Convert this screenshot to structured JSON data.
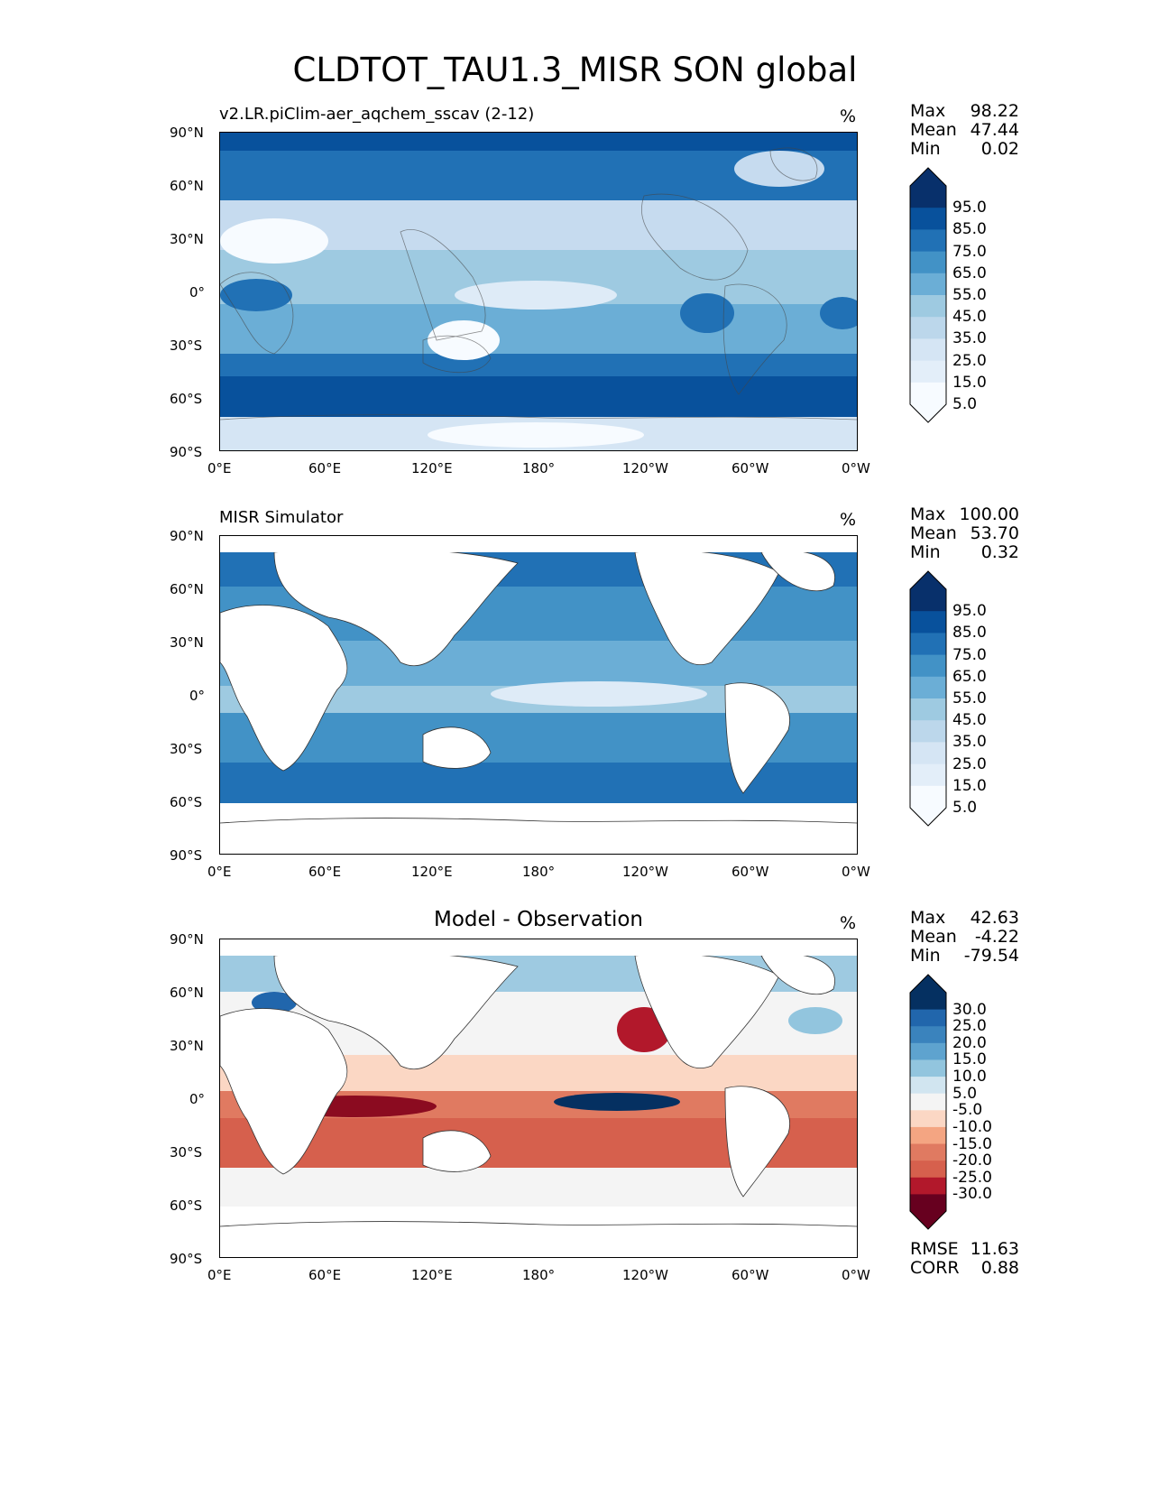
{
  "title": "CLDTOT_TAU1.3_MISR SON global",
  "lat_ticks": [
    "90°N",
    "60°N",
    "30°N",
    "0°",
    "30°S",
    "60°S",
    "90°S"
  ],
  "lon_ticks": [
    "0°E",
    "60°E",
    "120°E",
    "180°",
    "120°W",
    "60°W",
    "0°W"
  ],
  "panels": [
    {
      "subtitle": "v2.LR.piClim-aer_aqchem_sscav (2-12)",
      "units": "%",
      "stats": {
        "max_label": "Max",
        "max": "98.22",
        "mean_label": "Mean",
        "mean": "47.44",
        "min_label": "Min",
        "min": "0.02"
      },
      "colorbar": {
        "labels": [
          "95.0",
          "85.0",
          "75.0",
          "65.0",
          "55.0",
          "45.0",
          "35.0",
          "25.0",
          "15.0",
          "5.0"
        ],
        "colors": [
          "#08306b",
          "#08519c",
          "#2171b5",
          "#4292c6",
          "#6baed6",
          "#9ecae1",
          "#bcd7eb",
          "#d5e5f4",
          "#e3eef9",
          "#f7fbff"
        ]
      }
    },
    {
      "subtitle": "MISR Simulator",
      "units": "%",
      "stats": {
        "max_label": "Max",
        "max": "100.00",
        "mean_label": "Mean",
        "mean": "53.70",
        "min_label": "Min",
        "min": "0.32"
      },
      "colorbar": {
        "labels": [
          "95.0",
          "85.0",
          "75.0",
          "65.0",
          "55.0",
          "45.0",
          "35.0",
          "25.0",
          "15.0",
          "5.0"
        ],
        "colors": [
          "#08306b",
          "#08519c",
          "#2171b5",
          "#4292c6",
          "#6baed6",
          "#9ecae1",
          "#bcd7eb",
          "#d5e5f4",
          "#e3eef9",
          "#f7fbff"
        ]
      }
    },
    {
      "subtitle": "Model - Observation",
      "units": "%",
      "stats": {
        "max_label": "Max",
        "max": "42.63",
        "mean_label": "Mean",
        "mean": "-4.22",
        "min_label": "Min",
        "min": "-79.54"
      },
      "colorbar": {
        "labels": [
          "30.0",
          "25.0",
          "20.0",
          "15.0",
          "10.0",
          "5.0",
          "-5.0",
          "-10.0",
          "-15.0",
          "-20.0",
          "-25.0",
          "-30.0"
        ],
        "colors": [
          "#053061",
          "#2166ac",
          "#3a83bd",
          "#5ea3cf",
          "#92c5de",
          "#d1e5f0",
          "#f4f4f4",
          "#fbd7c4",
          "#f4a582",
          "#e07a61",
          "#d6604d",
          "#b2182b",
          "#67001f"
        ]
      },
      "rmse_label": "RMSE",
      "rmse": "11.63",
      "corr_label": "CORR",
      "corr": "0.88"
    }
  ]
}
